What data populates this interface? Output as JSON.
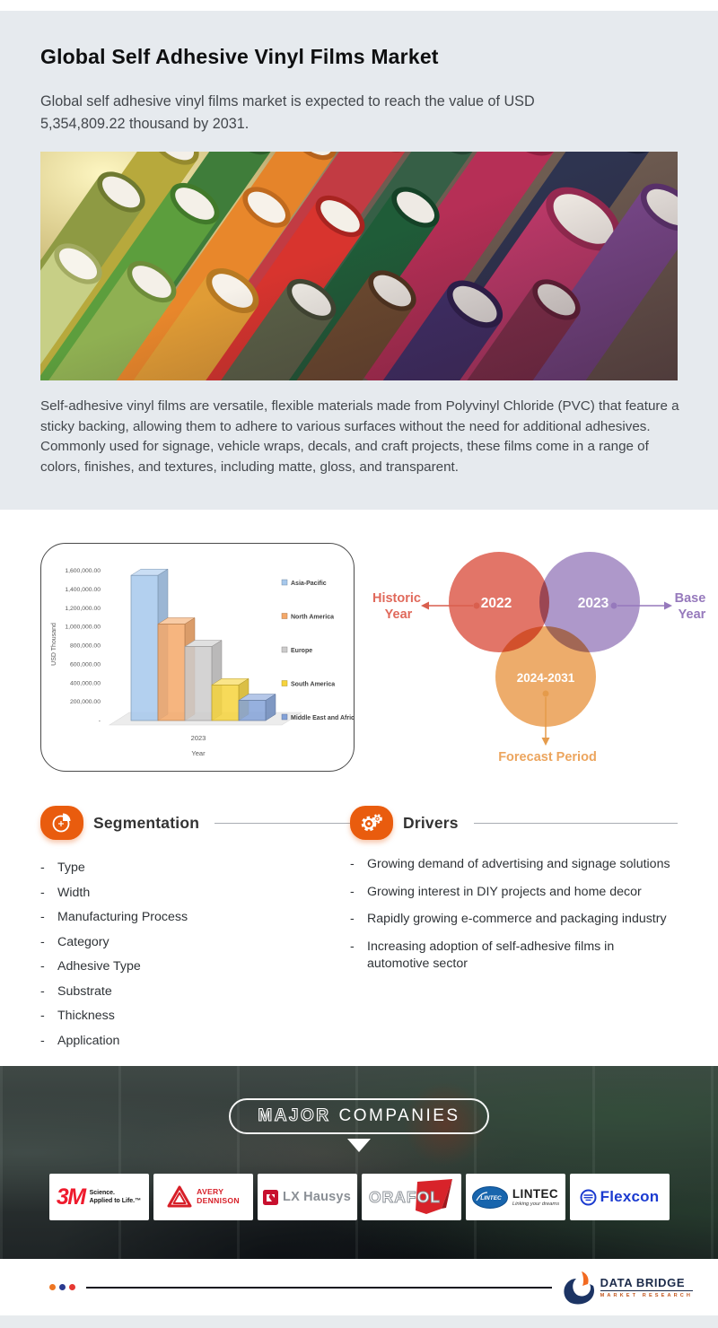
{
  "header": {
    "title": "Global Self Adhesive Vinyl Films Market",
    "subtitle": "Global self adhesive vinyl films market is expected to reach the value of USD 5,354,809.22 thousand by 2031.",
    "description": "Self-adhesive vinyl films are versatile, flexible materials made from Polyvinyl Chloride (PVC) that feature a sticky backing, allowing them to adhere to various surfaces without the need for additional adhesives. Commonly used for signage, vehicle wraps, decals, and craft projects, these films come in a range of colors, finishes, and textures, including matte, gloss, and transparent."
  },
  "chart_data": {
    "type": "bar",
    "bar3d": true,
    "categories": [
      "2023"
    ],
    "xlabel": "Year",
    "ylabel": "USD Thousand",
    "ylim": [
      0,
      1600000
    ],
    "ytick_labels": [
      "-",
      "200,000.00",
      "400,000.00",
      "600,000.00",
      "800,000.00",
      "1,000,000.00",
      "1,200,000.00",
      "1,400,000.00",
      "1,600,000.00"
    ],
    "legend_position": "right",
    "grid": false,
    "series": [
      {
        "name": "Asia-Pacific",
        "color": "#a6c8ec",
        "values": [
          1550000
        ]
      },
      {
        "name": "North America",
        "color": "#f4a869",
        "values": [
          1030000
        ]
      },
      {
        "name": "Europe",
        "color": "#cccbcb",
        "values": [
          790000
        ]
      },
      {
        "name": "South America",
        "color": "#f6d33c",
        "values": [
          380000
        ]
      },
      {
        "name": "Middle East and Africa",
        "color": "#84a2d8",
        "values": [
          215000
        ]
      }
    ]
  },
  "venn": {
    "historic": {
      "year": "2022",
      "label_line1": "Historic",
      "label_line2": "Year",
      "color": "#e0695b"
    },
    "base": {
      "year": "2023",
      "label_line1": "Base",
      "label_line2": "Year",
      "color": "#a78fc6"
    },
    "forecast": {
      "year": "2024-2031",
      "label": "Forecast Period",
      "color": "#eca55e"
    }
  },
  "segmentation": {
    "title": "Segmentation",
    "items": [
      "Type",
      "Width",
      "Manufacturing Process",
      "Category",
      "Adhesive Type",
      "Substrate",
      "Thickness",
      "Application"
    ]
  },
  "drivers": {
    "title": "Drivers",
    "items": [
      "Growing demand of advertising and signage solutions",
      "Growing interest in DIY projects and home decor",
      "Rapidly growing e-commerce and packaging industry",
      "Increasing adoption of self-adhesive films in automotive sector"
    ]
  },
  "companies": {
    "banner": {
      "word1": "MAJOR",
      "word2": "COMPANIES"
    },
    "logos": [
      {
        "name": "3M",
        "text": "3M",
        "tagline1": "Science.",
        "tagline2": "Applied to Life.™"
      },
      {
        "name": "Avery Dennison",
        "line1": "AVERY",
        "line2": "DENNISON"
      },
      {
        "name": "LX Hausys",
        "text": "LX Hausys"
      },
      {
        "name": "ORAFOL",
        "text": "ORAFOL"
      },
      {
        "name": "LINTEC",
        "text": "LINTEC",
        "badge": "LINTEC",
        "tagline": "Linking your dreams"
      },
      {
        "name": "Flexcon",
        "text": "Flexcon"
      }
    ]
  },
  "footer": {
    "brand_line1": "DATA BRIDGE",
    "brand_line2": "MARKET RESEARCH",
    "dot_colors": [
      "#ee7623",
      "#2b3a8f",
      "#e63832"
    ]
  }
}
